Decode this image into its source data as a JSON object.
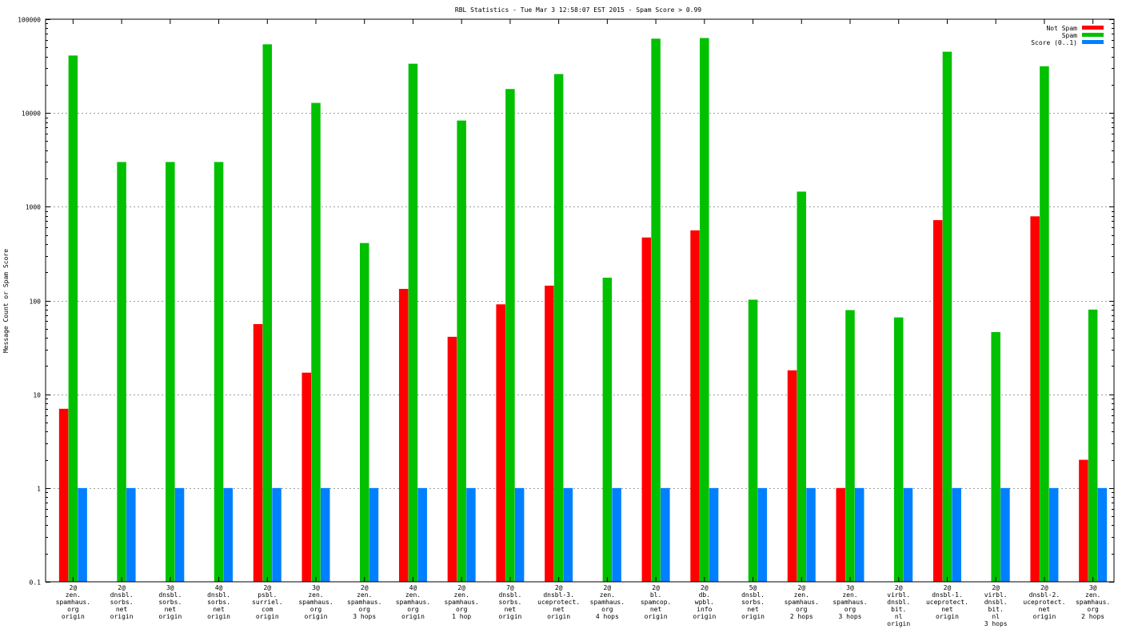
{
  "chart_data": {
    "type": "bar",
    "title": "RBL Statistics - Tue Mar  3 12:58:07 EST 2015 - Spam Score > 0.99",
    "ylabel": "Message Count or Spam Score",
    "xlabel": "",
    "yscale": "log",
    "ylim": [
      0.1,
      100000
    ],
    "grid": true,
    "legend_position": "top-right",
    "y_ticks": [
      {
        "value": 0.1,
        "label": "0.1"
      },
      {
        "value": 1,
        "label": "1"
      },
      {
        "value": 10,
        "label": "10"
      },
      {
        "value": 100,
        "label": "100"
      },
      {
        "value": 1000,
        "label": "1000"
      },
      {
        "value": 10000,
        "label": "10000"
      },
      {
        "value": 100000,
        "label": "100000"
      }
    ],
    "categories": [
      [
        "2@",
        "zen.",
        "spamhaus.",
        "org",
        "origin"
      ],
      [
        "2@",
        "dnsbl.",
        "sorbs.",
        "net",
        "origin"
      ],
      [
        "3@",
        "dnsbl.",
        "sorbs.",
        "net",
        "origin"
      ],
      [
        "4@",
        "dnsbl.",
        "sorbs.",
        "net",
        "origin"
      ],
      [
        "2@",
        "psbl.",
        "surriel.",
        "com",
        "origin"
      ],
      [
        "3@",
        "zen.",
        "spamhaus.",
        "org",
        "origin"
      ],
      [
        "2@",
        "zen.",
        "spamhaus.",
        "org",
        "3 hops"
      ],
      [
        "4@",
        "zen.",
        "spamhaus.",
        "org",
        "origin"
      ],
      [
        "2@",
        "zen.",
        "spamhaus.",
        "org",
        "1 hop"
      ],
      [
        "7@",
        "dnsbl.",
        "sorbs.",
        "net",
        "origin"
      ],
      [
        "2@",
        "dnsbl-3.",
        "uceprotect.",
        "net",
        "origin"
      ],
      [
        "2@",
        "zen.",
        "spamhaus.",
        "org",
        "4 hops"
      ],
      [
        "2@",
        "bl.",
        "spamcop.",
        "net",
        "origin"
      ],
      [
        "2@",
        "db.",
        "wpbl.",
        "info",
        "origin"
      ],
      [
        "5@",
        "dnsbl.",
        "sorbs.",
        "net",
        "origin"
      ],
      [
        "2@",
        "zen.",
        "spamhaus.",
        "org",
        "2 hops"
      ],
      [
        "3@",
        "zen.",
        "spamhaus.",
        "org",
        "3 hops"
      ],
      [
        "2@",
        "virbl.",
        "dnsbl.",
        "bit.",
        "nl",
        "origin"
      ],
      [
        "2@",
        "dnsbl-1.",
        "uceprotect.",
        "net",
        "origin"
      ],
      [
        "2@",
        "virbl.",
        "dnsbl.",
        "bit.",
        "nl",
        "3 hops"
      ],
      [
        "2@",
        "dnsbl-2.",
        "uceprotect.",
        "net",
        "origin"
      ],
      [
        "3@",
        "zen.",
        "spamhaus.",
        "org",
        "2 hops"
      ]
    ],
    "series": [
      {
        "name": "Not Spam",
        "color": "#ff0000",
        "values": [
          7,
          null,
          null,
          null,
          56,
          17,
          null,
          133,
          41,
          91,
          144,
          null,
          470,
          560,
          null,
          18,
          1,
          null,
          720,
          null,
          790,
          2
        ]
      },
      {
        "name": "Spam",
        "color": "#00c000",
        "values": [
          41000,
          3000,
          3000,
          3000,
          54000,
          12800,
          410,
          33500,
          8300,
          18000,
          26000,
          175,
          62000,
          63000,
          102,
          1450,
          79,
          66,
          45000,
          46,
          31500,
          80
        ]
      },
      {
        "name": "Score (0..1)",
        "color": "#0080ff",
        "values": [
          1,
          1,
          1,
          1,
          1,
          1,
          1,
          1,
          1,
          1,
          1,
          1,
          1,
          1,
          1,
          1,
          1,
          1,
          1,
          1,
          1,
          1
        ]
      }
    ]
  }
}
